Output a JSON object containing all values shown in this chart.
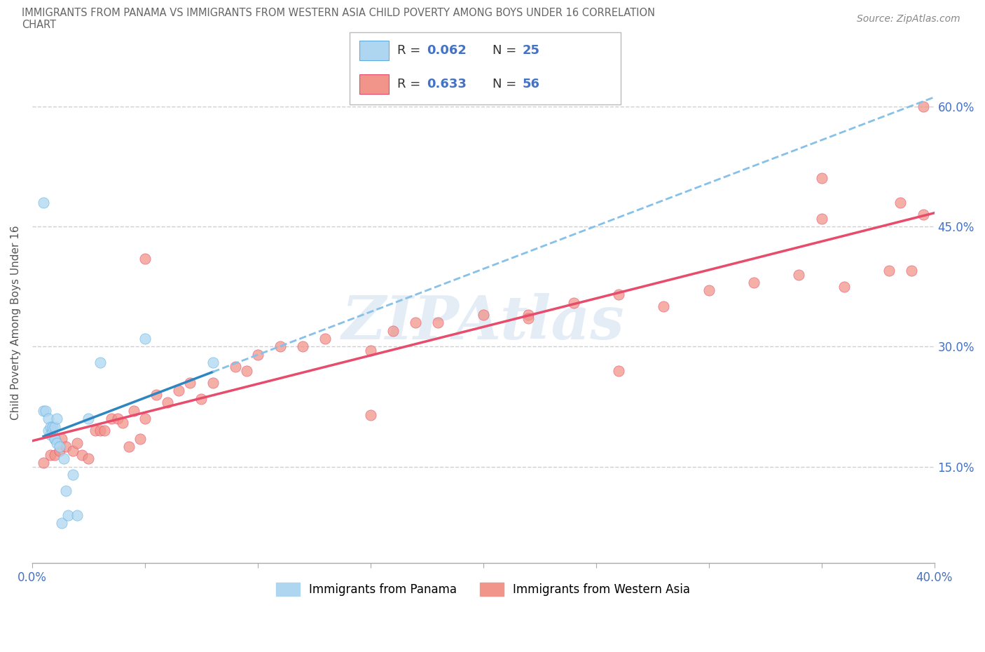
{
  "title_line1": "IMMIGRANTS FROM PANAMA VS IMMIGRANTS FROM WESTERN ASIA CHILD POVERTY AMONG BOYS UNDER 16 CORRELATION",
  "title_line2": "CHART",
  "source_text": "Source: ZipAtlas.com",
  "watermark": "ZIPAtlas",
  "ylabel_left": "Child Poverty Among Boys Under 16",
  "xlim": [
    0.0,
    0.4
  ],
  "ylim": [
    0.03,
    0.63
  ],
  "ytick_right": [
    0.15,
    0.3,
    0.45,
    0.6
  ],
  "ytick_right_labels": [
    "15.0%",
    "30.0%",
    "45.0%",
    "60.0%"
  ],
  "xtick_pos": [
    0.0,
    0.05,
    0.1,
    0.15,
    0.2,
    0.25,
    0.3,
    0.35,
    0.4
  ],
  "xtick_labels": [
    "0.0%",
    "",
    "",
    "",
    "",
    "",
    "",
    "",
    "40.0%"
  ],
  "grid_color": "#d0d0d0",
  "background_color": "#ffffff",
  "legend_R1": "0.062",
  "legend_N1": "25",
  "legend_R2": "0.633",
  "legend_N2": "56",
  "legend_label1": "Immigrants from Panama",
  "legend_label2": "Immigrants from Western Asia",
  "color_panama_fill": "#aed6f1",
  "color_panama_edge": "#5dade2",
  "color_western_fill": "#f1948a",
  "color_western_edge": "#e74c6c",
  "color_trendline_panama_solid": "#2e86c1",
  "color_trendline_panama_dash": "#85c1e9",
  "color_trendline_western": "#e74c6c",
  "color_text_blue": "#4472c4",
  "panama_x": [
    0.005,
    0.005,
    0.006,
    0.007,
    0.007,
    0.008,
    0.008,
    0.009,
    0.009,
    0.01,
    0.01,
    0.01,
    0.011,
    0.011,
    0.012,
    0.013,
    0.014,
    0.015,
    0.016,
    0.018,
    0.02,
    0.025,
    0.03,
    0.05,
    0.08
  ],
  "panama_y": [
    0.48,
    0.22,
    0.22,
    0.21,
    0.195,
    0.2,
    0.19,
    0.195,
    0.2,
    0.2,
    0.185,
    0.185,
    0.21,
    0.18,
    0.175,
    0.08,
    0.16,
    0.12,
    0.09,
    0.14,
    0.09,
    0.21,
    0.28,
    0.31,
    0.28
  ],
  "western_x": [
    0.005,
    0.008,
    0.01,
    0.012,
    0.013,
    0.015,
    0.018,
    0.02,
    0.022,
    0.025,
    0.028,
    0.03,
    0.032,
    0.035,
    0.038,
    0.04,
    0.043,
    0.045,
    0.048,
    0.05,
    0.055,
    0.06,
    0.065,
    0.07,
    0.075,
    0.08,
    0.09,
    0.095,
    0.1,
    0.11,
    0.12,
    0.13,
    0.15,
    0.16,
    0.17,
    0.18,
    0.2,
    0.22,
    0.24,
    0.26,
    0.28,
    0.3,
    0.32,
    0.34,
    0.35,
    0.36,
    0.38,
    0.385,
    0.39,
    0.395,
    0.05,
    0.15,
    0.22,
    0.26,
    0.35,
    0.395
  ],
  "western_y": [
    0.155,
    0.165,
    0.165,
    0.17,
    0.185,
    0.175,
    0.17,
    0.18,
    0.165,
    0.16,
    0.195,
    0.195,
    0.195,
    0.21,
    0.21,
    0.205,
    0.175,
    0.22,
    0.185,
    0.21,
    0.24,
    0.23,
    0.245,
    0.255,
    0.235,
    0.255,
    0.275,
    0.27,
    0.29,
    0.3,
    0.3,
    0.31,
    0.295,
    0.32,
    0.33,
    0.33,
    0.34,
    0.34,
    0.355,
    0.365,
    0.35,
    0.37,
    0.38,
    0.39,
    0.51,
    0.375,
    0.395,
    0.48,
    0.395,
    0.6,
    0.41,
    0.215,
    0.335,
    0.27,
    0.46,
    0.465
  ]
}
